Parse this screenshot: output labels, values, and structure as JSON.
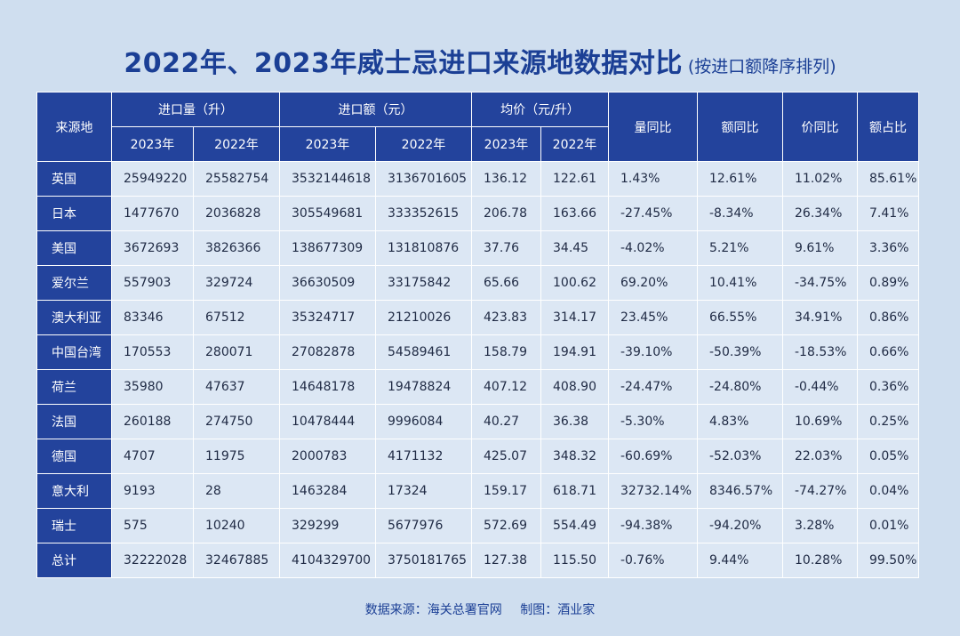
{
  "title": {
    "main": "2022年、2023年威士忌进口来源地数据对比",
    "sub": "(按进口额降序排列)"
  },
  "table": {
    "headers": {
      "source": "来源地",
      "volume": "进口量（升）",
      "amount": "进口额（元）",
      "price": "均价（元/升）",
      "vol_yoy": "量同比",
      "amt_yoy": "额同比",
      "price_yoy": "价同比",
      "share": "额占比",
      "y2023": "2023年",
      "y2022": "2022年"
    },
    "rows": [
      [
        "英国",
        "25949220",
        "25582754",
        "3532144618",
        "3136701605",
        "136.12",
        "122.61",
        "1.43%",
        "12.61%",
        "11.02%",
        "85.61%"
      ],
      [
        "日本",
        "1477670",
        "2036828",
        "305549681",
        "333352615",
        "206.78",
        "163.66",
        "-27.45%",
        "-8.34%",
        "26.34%",
        "7.41%"
      ],
      [
        "美国",
        "3672693",
        "3826366",
        "138677309",
        "131810876",
        "37.76",
        "34.45",
        "-4.02%",
        "5.21%",
        "9.61%",
        "3.36%"
      ],
      [
        "爱尔兰",
        "557903",
        "329724",
        "36630509",
        "33175842",
        "65.66",
        "100.62",
        "69.20%",
        "10.41%",
        "-34.75%",
        "0.89%"
      ],
      [
        "澳大利亚",
        "83346",
        "67512",
        "35324717",
        "21210026",
        "423.83",
        "314.17",
        "23.45%",
        "66.55%",
        "34.91%",
        "0.86%"
      ],
      [
        "中国台湾",
        "170553",
        "280071",
        "27082878",
        "54589461",
        "158.79",
        "194.91",
        "-39.10%",
        "-50.39%",
        "-18.53%",
        "0.66%"
      ],
      [
        "荷兰",
        "35980",
        "47637",
        "14648178",
        "19478824",
        "407.12",
        "408.90",
        "-24.47%",
        "-24.80%",
        "-0.44%",
        "0.36%"
      ],
      [
        "法国",
        "260188",
        "274750",
        "10478444",
        "9996084",
        "40.27",
        "36.38",
        "-5.30%",
        "4.83%",
        "10.69%",
        "0.25%"
      ],
      [
        "德国",
        "4707",
        "11975",
        "2000783",
        "4171132",
        "425.07",
        "348.32",
        "-60.69%",
        "-52.03%",
        "22.03%",
        "0.05%"
      ],
      [
        "意大利",
        "9193",
        "28",
        "1463284",
        "17324",
        "159.17",
        "618.71",
        "32732.14%",
        "8346.57%",
        "-74.27%",
        "0.04%"
      ],
      [
        "瑞士",
        "575",
        "10240",
        "329299",
        "5677976",
        "572.69",
        "554.49",
        "-94.38%",
        "-94.20%",
        "3.28%",
        "0.01%"
      ],
      [
        "总计",
        "32222028",
        "32467885",
        "4104329700",
        "3750181765",
        "127.38",
        "115.50",
        "-0.76%",
        "9.44%",
        "10.28%",
        "99.50%"
      ]
    ]
  },
  "footer": {
    "source": "数据来源：海关总署官网",
    "credit": "制图：酒业家"
  },
  "colors": {
    "background": "#cfdeef",
    "header": "#23439c",
    "cell": "#dce7f4",
    "title": "#1b3f95"
  }
}
